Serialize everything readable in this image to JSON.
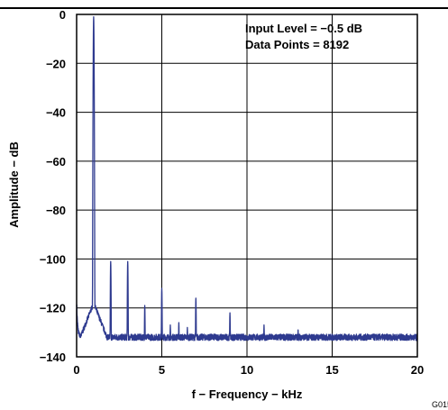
{
  "chart_data": {
    "type": "line",
    "title": "",
    "xlabel": "f − Frequency − kHz",
    "ylabel": "Amplitude − dB",
    "xlim": [
      0,
      20
    ],
    "ylim": [
      -140,
      0
    ],
    "xticks": [
      0,
      5,
      10,
      15,
      20
    ],
    "yticks": [
      0,
      -20,
      -40,
      -60,
      -80,
      -100,
      -120,
      -140
    ],
    "grid": true,
    "annotations": [
      "Input Level = −0.5 dB",
      "Data Points = 8192"
    ],
    "series": [
      {
        "color": "#2e3a8f",
        "noise_floor_db": -132,
        "peaks": [
          {
            "x": 1,
            "y": -1
          },
          {
            "x": 2,
            "y": -101
          },
          {
            "x": 3,
            "y": -101
          },
          {
            "x": 4,
            "y": -119
          },
          {
            "x": 5,
            "y": -112
          },
          {
            "x": 5.5,
            "y": -127
          },
          {
            "x": 6,
            "y": -126
          },
          {
            "x": 6.5,
            "y": -128
          },
          {
            "x": 7,
            "y": -116
          },
          {
            "x": 9,
            "y": -122
          },
          {
            "x": 11,
            "y": -127
          },
          {
            "x": 13,
            "y": -129
          }
        ]
      }
    ]
  },
  "figure_id": "G015"
}
